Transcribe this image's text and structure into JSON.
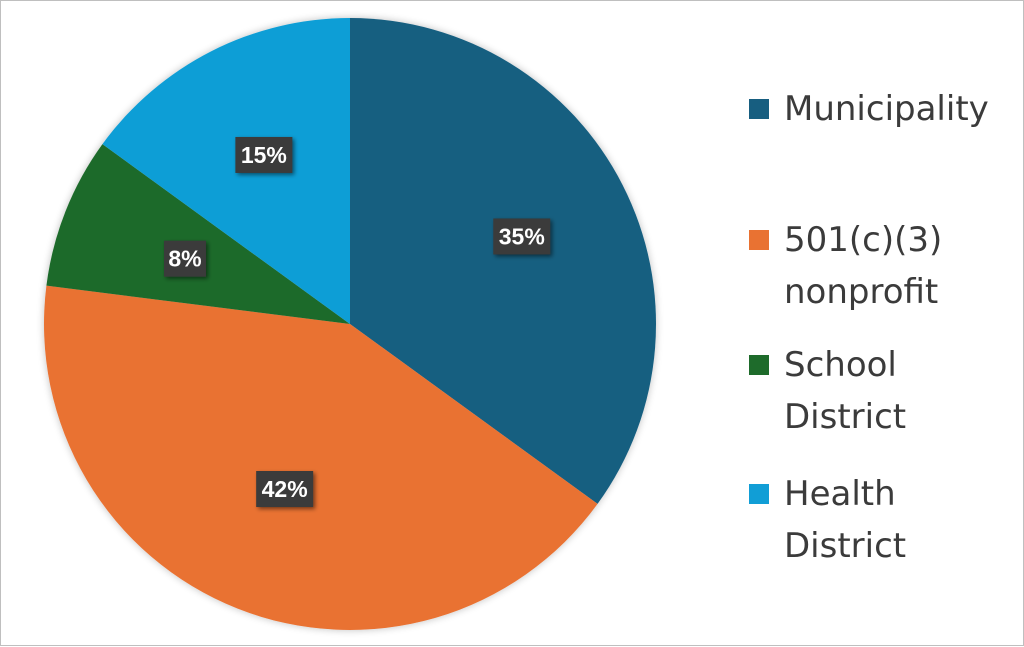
{
  "chart_data": {
    "type": "pie",
    "slices": [
      {
        "label": "Municipality",
        "value": 35,
        "data_label": "35%",
        "color": "#175e80"
      },
      {
        "label": "501(c)(3) nonprofit",
        "value": 42,
        "data_label": "42%",
        "color": "#e97232"
      },
      {
        "label": "School District",
        "value": 8,
        "data_label": "8%",
        "color": "#1e6b2b"
      },
      {
        "label": "Health District",
        "value": 15,
        "data_label": "15%",
        "color": "#119ed6"
      }
    ],
    "start_angle": "12 o'clock",
    "direction": "clockwise",
    "legend_position": "right",
    "data_label_style": {
      "background": "#3a3a3a",
      "color": "#ffffff"
    }
  }
}
